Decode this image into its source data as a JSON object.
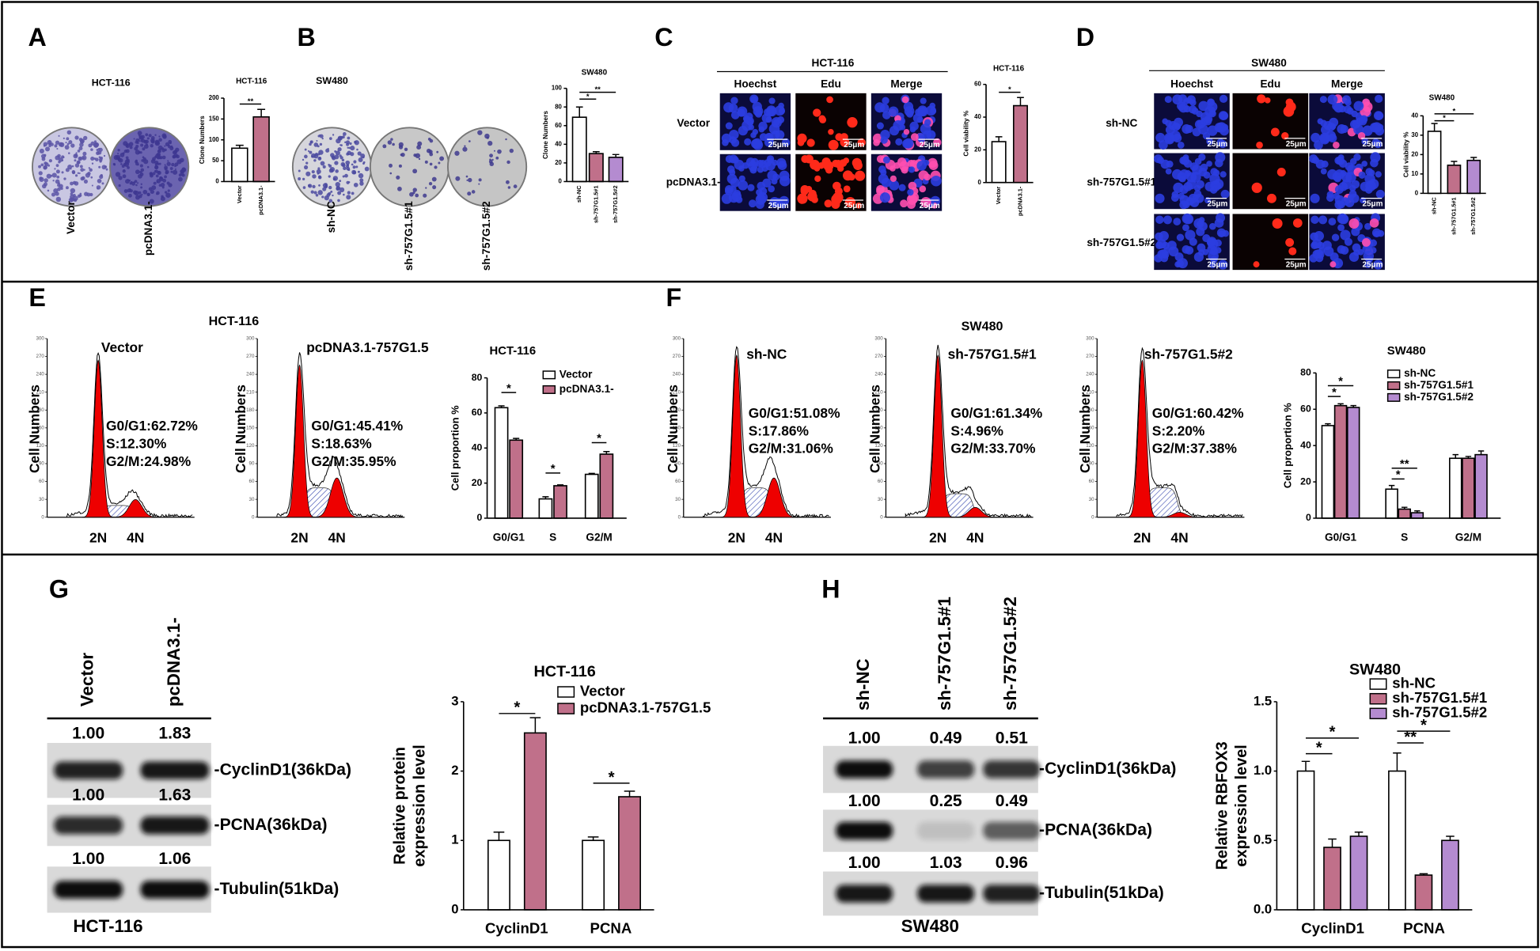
{
  "panels": [
    {
      "letter": "A",
      "title": "HCT-116",
      "dish_labels": [
        "Vector",
        "pcDNA3.1-"
      ],
      "chart": {
        "type": "bar",
        "title": "HCT-116",
        "ylabel": "Clone Numbers",
        "categories": [
          "Vector",
          "pcDNA3.1-"
        ],
        "values": [
          80,
          155
        ],
        "errors": [
          7,
          18
        ],
        "colors": [
          "#ffffff",
          "#c0708a"
        ],
        "ylim": [
          0,
          200
        ],
        "yticks": [
          0,
          50,
          100,
          150,
          200
        ],
        "sig": [
          "**"
        ]
      }
    },
    {
      "letter": "B",
      "title": "SW480",
      "dish_labels": [
        "sh-NC",
        "sh-757G1.5#1",
        "sh-757G1.5#2"
      ],
      "chart": {
        "type": "bar",
        "title": "SW480",
        "ylabel": "Clone Numbers",
        "categories": [
          "sh-NC",
          "sh-757G1.5#1",
          "sh-757G1.5#2"
        ],
        "values": [
          69,
          30,
          26
        ],
        "errors": [
          11,
          2,
          3
        ],
        "colors": [
          "#ffffff",
          "#c0708a",
          "#b48bd0"
        ],
        "ylim": [
          0,
          100
        ],
        "yticks": [
          0,
          20,
          40,
          60,
          80,
          100
        ],
        "sig": [
          "*",
          "**"
        ]
      }
    },
    {
      "letter": "C",
      "title": "HCT-116",
      "columns": [
        "Hoechst",
        "Edu",
        "Merge"
      ],
      "rows": [
        "Vector",
        "pcDNA3.1-"
      ],
      "scale_bar": "25μm",
      "chart": {
        "type": "bar",
        "title": "HCT-116",
        "ylabel": "Cell viability %",
        "categories": [
          "Vector",
          "pcDNA3.1-"
        ],
        "values": [
          25,
          47
        ],
        "errors": [
          3,
          5
        ],
        "colors": [
          "#ffffff",
          "#c0708a"
        ],
        "ylim": [
          0,
          60
        ],
        "yticks": [
          0,
          20,
          40,
          60
        ],
        "sig": [
          "*"
        ]
      }
    },
    {
      "letter": "D",
      "title": "SW480",
      "columns": [
        "Hoechst",
        "Edu",
        "Merge"
      ],
      "rows": [
        "sh-NC",
        "sh-757G1.5#1",
        "sh-757G1.5#2"
      ],
      "scale_bar": "25μm",
      "chart": {
        "type": "bar",
        "title": "SW480",
        "ylabel": "Cell viability %",
        "categories": [
          "sh-NC",
          "sh-757G1.5#1",
          "sh-757G1.5#2"
        ],
        "values": [
          32,
          14.5,
          17
        ],
        "errors": [
          4,
          2,
          1.5
        ],
        "colors": [
          "#ffffff",
          "#c0708a",
          "#b48bd0"
        ],
        "ylim": [
          0,
          40
        ],
        "yticks": [
          0,
          10,
          20,
          30,
          40
        ],
        "sig": [
          "*",
          "*"
        ]
      }
    },
    {
      "letter": "E",
      "title": "HCT-116",
      "hist_axis": {
        "ylabel": "Cell Numbers",
        "x_labels": [
          "2N",
          "4N"
        ],
        "ylim": [
          0,
          300
        ],
        "yticks": [
          0,
          30,
          60,
          90,
          120,
          150,
          180,
          210,
          240,
          270,
          300
        ]
      },
      "histograms": [
        {
          "label": "Vector",
          "stats": [
            "G0/G1:62.72%",
            "S:12.30%",
            "G2/M:24.98%"
          ]
        },
        {
          "label": "pcDNA3.1-757G1.5",
          "stats": [
            "G0/G1:45.41%",
            "S:18.63%",
            "G2/M:35.95%"
          ]
        }
      ],
      "chart": {
        "type": "bar",
        "title": "HCT-116",
        "ylabel": "Cell proportion %",
        "categories": [
          "G0/G1",
          "S",
          "G2/M"
        ],
        "series": [
          {
            "name": "Vector",
            "color": "#ffffff",
            "values": [
              63,
              11,
              25
            ],
            "errors": [
              1,
              1.2,
              0.5
            ]
          },
          {
            "name": "pcDNA3.1-",
            "color": "#c0708a",
            "values": [
              44.5,
              18.5,
              36.5
            ],
            "errors": [
              1,
              0.5,
              1.5
            ]
          }
        ],
        "ylim": [
          0,
          80
        ],
        "yticks": [
          0,
          20,
          40,
          60,
          80
        ],
        "sig": [
          "*",
          "*",
          "*"
        ]
      }
    },
    {
      "letter": "F",
      "title": "SW480",
      "hist_axis": {
        "ylabel": "Cell Numbers",
        "x_labels": [
          "2N",
          "4N"
        ],
        "ylim": [
          0,
          300
        ],
        "yticks": [
          0,
          30,
          60,
          90,
          120,
          150,
          180,
          210,
          240,
          270,
          300
        ]
      },
      "histograms": [
        {
          "label": "sh-NC",
          "stats": [
            "G0/G1:51.08%",
            "S:17.86%",
            "G2/M:31.06%"
          ]
        },
        {
          "label": "sh-757G1.5#1",
          "stats": [
            "G0/G1:61.34%",
            "S:4.96%",
            "G2/M:33.70%"
          ]
        },
        {
          "label": "sh-757G1.5#2",
          "stats": [
            "G0/G1:60.42%",
            "S:2.20%",
            "G2/M:37.38%"
          ]
        }
      ],
      "chart": {
        "type": "bar",
        "title": "SW480",
        "ylabel": "Cell proportion %",
        "categories": [
          "G0/G1",
          "S",
          "G2/M"
        ],
        "series": [
          {
            "name": "sh-NC",
            "color": "#ffffff",
            "values": [
              51,
              16,
              33
            ],
            "errors": [
              1,
              2,
              2
            ]
          },
          {
            "name": "sh-757G1.5#1",
            "color": "#c0708a",
            "values": [
              62,
              5,
              33
            ],
            "errors": [
              1,
              1,
              1
            ]
          },
          {
            "name": "sh-757G1.5#2",
            "color": "#b48bd0",
            "values": [
              61,
              3,
              35
            ],
            "errors": [
              1,
              1,
              2
            ]
          }
        ],
        "ylim": [
          0,
          80
        ],
        "yticks": [
          0,
          20,
          40,
          60,
          80
        ],
        "sig": [
          "*",
          "*",
          "*",
          "**"
        ]
      }
    },
    {
      "letter": "G",
      "lanes": [
        "Vector",
        "pcDNA3.1-"
      ],
      "cell_line": "HCT-116",
      "blots": [
        {
          "label": "-CyclinD1(36kDa)",
          "values": [
            "1.00",
            "1.83"
          ]
        },
        {
          "label": "-PCNA(36kDa)",
          "values": [
            "1.00",
            "1.63"
          ]
        },
        {
          "label": "-Tubulin(51kDa)",
          "values": [
            "1.00",
            "1.06"
          ]
        }
      ],
      "chart": {
        "type": "bar",
        "title": "HCT-116",
        "ylabel": [
          "Relative protein",
          "expression level"
        ],
        "categories": [
          "CyclinD1",
          "PCNA"
        ],
        "series": [
          {
            "name": "Vector",
            "color": "#ffffff",
            "values": [
              1,
              1
            ],
            "errors": [
              0.12,
              0.05
            ]
          },
          {
            "name": "pcDNA3.1-757G1.5",
            "color": "#c0708a",
            "values": [
              2.55,
              1.63
            ],
            "errors": [
              0.22,
              0.08
            ]
          }
        ],
        "ylim": [
          0,
          3
        ],
        "yticks": [
          0,
          1,
          2,
          3
        ],
        "sig": [
          "*",
          "*"
        ]
      }
    },
    {
      "letter": "H",
      "lanes": [
        "sh-NC",
        "sh-757G1.5#1",
        "sh-757G1.5#2"
      ],
      "cell_line": "SW480",
      "blots": [
        {
          "label": "-CyclinD1(36kDa)",
          "values": [
            "1.00",
            "0.49",
            "0.51"
          ]
        },
        {
          "label": "-PCNA(36kDa)",
          "values": [
            "1.00",
            "0.25",
            "0.49"
          ]
        },
        {
          "label": "-Tubulin(51kDa)",
          "values": [
            "1.00",
            "1.03",
            "0.96"
          ]
        }
      ],
      "chart": {
        "type": "bar",
        "title": "SW480",
        "ylabel": [
          "Relative RBFOX3",
          "expression level"
        ],
        "categories": [
          "CyclinD1",
          "PCNA"
        ],
        "series": [
          {
            "name": "sh-NC",
            "color": "#ffffff",
            "values": [
              1.0,
              1.0
            ],
            "errors": [
              0.07,
              0.13
            ]
          },
          {
            "name": "sh-757G1.5#1",
            "color": "#c0708a",
            "values": [
              0.45,
              0.25
            ],
            "errors": [
              0.06,
              0.01
            ]
          },
          {
            "name": "sh-757G1.5#2",
            "color": "#b48bd0",
            "values": [
              0.53,
              0.5
            ],
            "errors": [
              0.03,
              0.03
            ]
          }
        ],
        "ylim": [
          0,
          1.5
        ],
        "yticks": [
          {
            "value": 0,
            "label": "0.0"
          },
          0.5,
          {
            "value": 1,
            "label": "1.0"
          },
          1.5
        ],
        "sig": [
          "*",
          "*",
          "**",
          "*"
        ]
      }
    }
  ]
}
